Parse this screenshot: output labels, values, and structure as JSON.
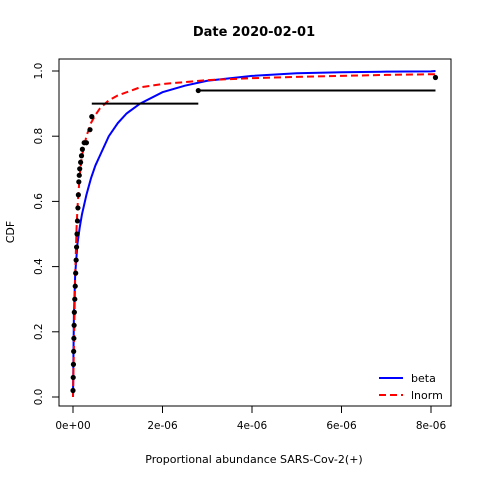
{
  "chart_data": {
    "type": "line",
    "title": "Date 2020-02-01",
    "xlabel": "Proportional abundance SARS-Cov-2(+)",
    "ylabel": "CDF",
    "xlim": [
      0,
      8.2e-06
    ],
    "ylim": [
      0,
      1.0
    ],
    "grid": false,
    "legend_position": "bottom-right",
    "x_ticks": [
      {
        "value": 0,
        "label": "0e+00"
      },
      {
        "value": 2e-06,
        "label": "2e-06"
      },
      {
        "value": 4e-06,
        "label": "4e-06"
      },
      {
        "value": 6e-06,
        "label": "6e-06"
      },
      {
        "value": 8e-06,
        "label": "8e-06"
      }
    ],
    "y_ticks": [
      {
        "value": 0.0,
        "label": "0.0"
      },
      {
        "value": 0.2,
        "label": "0.2"
      },
      {
        "value": 0.4,
        "label": "0.4"
      },
      {
        "value": 0.6,
        "label": "0.6"
      },
      {
        "value": 0.8,
        "label": "0.8"
      },
      {
        "value": 1.0,
        "label": "1.0"
      }
    ],
    "empirical_points": {
      "x": [
        0.0,
        5e-09,
        1e-08,
        1.5e-08,
        2e-08,
        2.5e-08,
        3e-08,
        4e-08,
        5e-08,
        6e-08,
        7e-08,
        8e-08,
        9e-08,
        1e-07,
        1.1e-07,
        1.2e-07,
        1.3e-07,
        1.4e-07,
        1.5e-07,
        1.7e-07,
        1.9e-07,
        2.1e-07,
        2.5e-07,
        3e-07,
        3.8e-07,
        4.2e-07,
        2.8e-06,
        8.1e-06
      ],
      "y": [
        0.02,
        0.06,
        0.1,
        0.14,
        0.18,
        0.22,
        0.26,
        0.3,
        0.34,
        0.38,
        0.42,
        0.46,
        0.5,
        0.54,
        0.58,
        0.62,
        0.66,
        0.68,
        0.7,
        0.72,
        0.74,
        0.76,
        0.78,
        0.78,
        0.82,
        0.86,
        0.94,
        0.98
      ]
    },
    "empirical_steps": [
      {
        "x_start": 4.2e-07,
        "x_end": 2.8e-06,
        "y": 0.9
      },
      {
        "x_start": 2.8e-06,
        "x_end": 8.1e-06,
        "y": 0.94
      }
    ],
    "series": [
      {
        "name": "beta",
        "color": "#0000FF",
        "line_style": "solid",
        "x": [
          0.0,
          2e-08,
          5e-08,
          1e-07,
          1.5e-07,
          2e-07,
          3e-07,
          4e-07,
          5e-07,
          6e-07,
          8e-07,
          1e-06,
          1.2e-06,
          1.5e-06,
          2e-06,
          2.5e-06,
          3e-06,
          4e-06,
          5e-06,
          6e-06,
          7e-06,
          8e-06,
          8.1e-06
        ],
        "y": [
          0.0,
          0.25,
          0.38,
          0.47,
          0.52,
          0.56,
          0.62,
          0.67,
          0.71,
          0.74,
          0.8,
          0.84,
          0.87,
          0.9,
          0.935,
          0.955,
          0.97,
          0.985,
          0.993,
          0.996,
          0.998,
          0.999,
          1.0
        ]
      },
      {
        "name": "lnorm",
        "color": "#FF0000",
        "line_style": "dashed",
        "x": [
          0.0,
          2e-08,
          5e-08,
          8e-08,
          1e-07,
          1.5e-07,
          2e-07,
          3e-07,
          4e-07,
          5e-07,
          6e-07,
          8e-07,
          1e-06,
          1.5e-06,
          2e-06,
          3e-06,
          4e-06,
          5e-06,
          6e-06,
          7e-06,
          8e-06,
          8.1e-06
        ],
        "y": [
          0.0,
          0.15,
          0.38,
          0.52,
          0.58,
          0.68,
          0.74,
          0.8,
          0.84,
          0.865,
          0.885,
          0.91,
          0.925,
          0.95,
          0.96,
          0.972,
          0.978,
          0.982,
          0.985,
          0.988,
          0.99,
          0.99
        ]
      }
    ]
  }
}
